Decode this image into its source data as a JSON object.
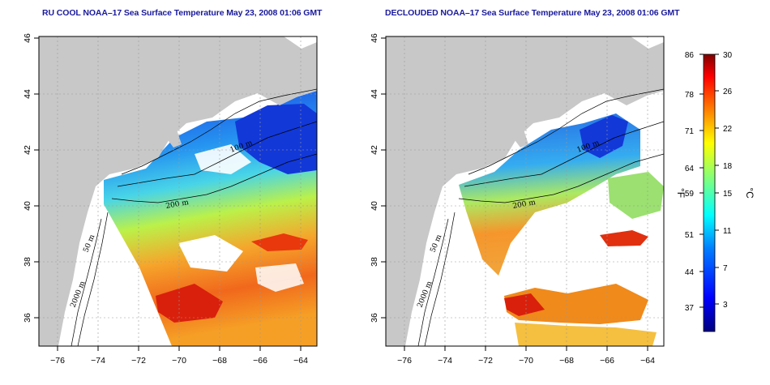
{
  "panels": [
    {
      "title": "RU COOL NOAA–17 Sea Surface Temperature May 23, 2008 01:06 GMT",
      "contour_labels": [
        "100 m",
        "200 m",
        "50 m",
        "2000 m"
      ]
    },
    {
      "title": "DECLOUDED NOAA–17 Sea Surface Temperature May 23, 2008 01:06 GMT",
      "contour_labels": [
        "100 m",
        "200 m",
        "50 m",
        "2000 m"
      ]
    }
  ],
  "axes": {
    "lat_ticks": [
      "46",
      "44",
      "42",
      "40",
      "38",
      "36"
    ],
    "lon_ticks": [
      "−76",
      "−74",
      "−72",
      "−70",
      "−68",
      "−66",
      "−64"
    ]
  },
  "colorbar": {
    "fahrenheit_ticks": [
      "86",
      "78",
      "71",
      "64",
      "59",
      "51",
      "44",
      "37"
    ],
    "celsius_ticks": [
      "30",
      "26",
      "22",
      "18",
      "15",
      "11",
      "7",
      "3"
    ],
    "left_unit": "°F",
    "right_unit": "°C",
    "colors": [
      "#00007f",
      "#0000ff",
      "#007fff",
      "#00ffff",
      "#7fff7f",
      "#ffff00",
      "#ff7f00",
      "#ff0000",
      "#7f0000"
    ]
  },
  "colors": {
    "land": "#c8c8c8",
    "title": "#1a1a9c"
  }
}
